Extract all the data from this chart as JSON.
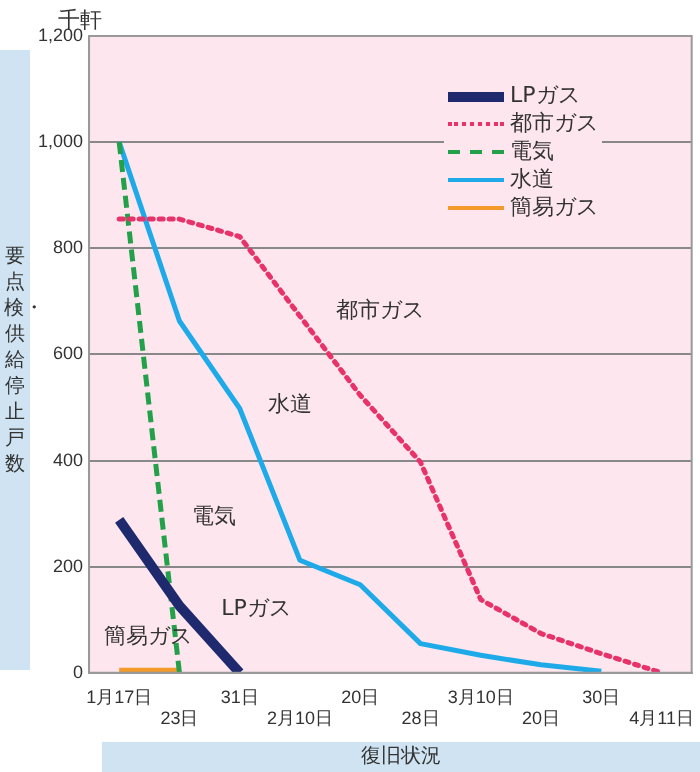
{
  "chart_data": {
    "type": "line",
    "ylabel": "要点検・供給停止戸数",
    "xlabel": "復旧状況",
    "annotations": [
      "千軒",
      "都市ガス",
      "水道",
      "電気",
      "LPガス",
      "簡易ガス"
    ],
    "categories": [
      "1月17日",
      "23日",
      "31日",
      "2月10日",
      "20日",
      "28日",
      "3月10日",
      "20日",
      "30日",
      "4月11日"
    ],
    "ylim": [
      0,
      1200
    ],
    "yticks": [
      0,
      200,
      400,
      600,
      800,
      {
        "value": 1000,
        "label": "1,000"
      },
      {
        "value": 1200,
        "label": "1,200"
      }
    ],
    "grid": "y",
    "legend": "top right",
    "marker": "none",
    "series": [
      {
        "name": "LPガス",
        "color": "#1f2a6e",
        "values": [
          288,
          126,
          0,
          null,
          null,
          null,
          null,
          null,
          null,
          null
        ]
      },
      {
        "name": "都市ガス",
        "color": "#e8336a",
        "line_style": "dotted",
        "values": [
          855,
          855,
          822,
          672,
          523,
          397,
          138,
          74,
          36,
          0
        ]
      },
      {
        "name": "電気",
        "color": "#22a04a",
        "line_style": "dashed",
        "values": [
          1000,
          0,
          null,
          null,
          null,
          null,
          null,
          null,
          null,
          null
        ]
      },
      {
        "name": "水道",
        "color": "#1eaae8",
        "values": [
          1000,
          663,
          498,
          212,
          166,
          55,
          33,
          15,
          3,
          null
        ]
      },
      {
        "name": "簡易ガス",
        "color": "#f39a2a",
        "values": [
          5,
          5,
          null,
          null,
          null,
          null,
          null,
          null,
          null,
          null
        ]
      }
    ]
  }
}
